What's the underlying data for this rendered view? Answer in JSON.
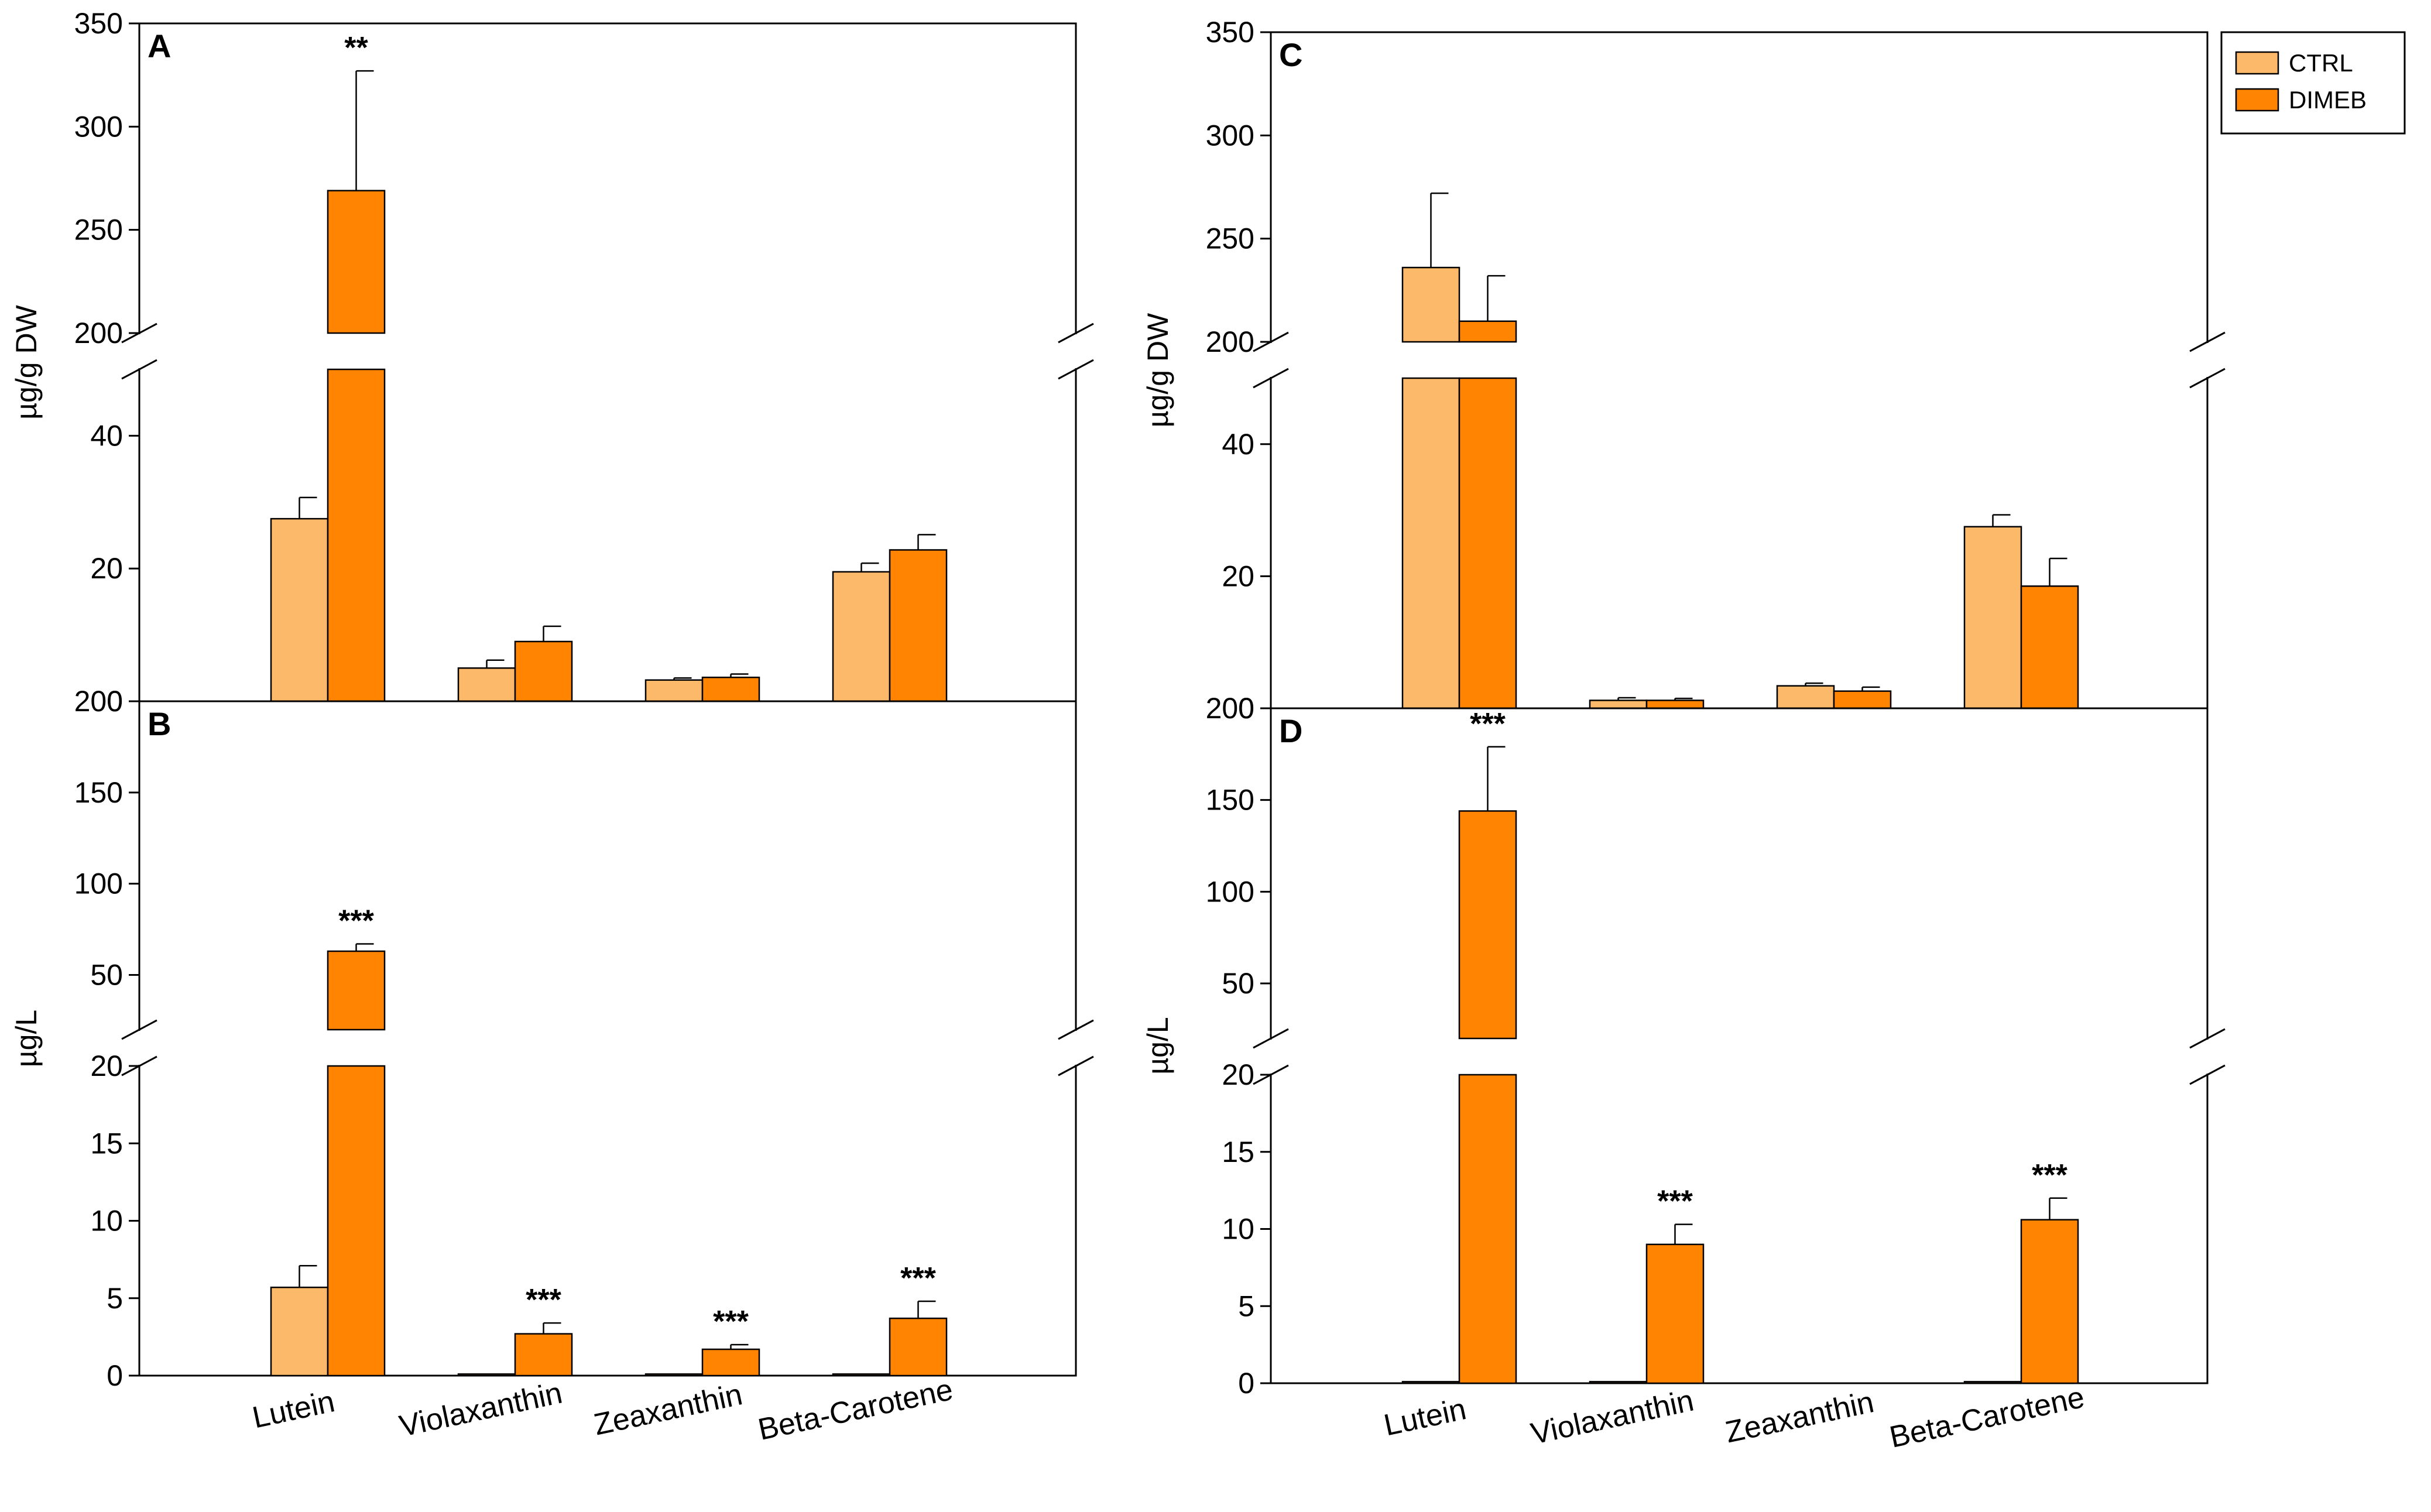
{
  "colors": {
    "ctrl": "#FDB96A",
    "dimeb": "#FF8401",
    "outline": "#000000"
  },
  "legend": [
    {
      "name": "CTRL",
      "color": "#FDB96A"
    },
    {
      "name": "DIMEB",
      "color": "#FF8401"
    }
  ],
  "chart_data": [
    {
      "panel": "A",
      "type": "bar",
      "ylabel": "µg/g DW",
      "y_axis_break": {
        "lower_range": [
          0,
          50
        ],
        "upper_range": [
          200,
          350
        ]
      },
      "lower_ticks": [
        0,
        20,
        40
      ],
      "upper_ticks": [
        200,
        250,
        300,
        350
      ],
      "categories": [
        "Lutein",
        "Violaxanthin",
        "Zeaxanthin",
        "Beta-Carotene"
      ],
      "series": [
        {
          "name": "CTRL",
          "values": [
            27.5,
            5.0,
            3.2,
            19.5
          ],
          "errors": [
            3.2,
            1.2,
            0.3,
            1.3
          ]
        },
        {
          "name": "DIMEB",
          "values": [
            269,
            9.0,
            3.6,
            22.8
          ],
          "errors": [
            58,
            2.3,
            0.5,
            2.3
          ]
        }
      ],
      "significance": [
        "**",
        "",
        "",
        ""
      ]
    },
    {
      "panel": "B",
      "type": "bar",
      "ylabel": "µg/L",
      "y_axis_break": {
        "lower_range": [
          0,
          20
        ],
        "upper_range": [
          20,
          200
        ]
      },
      "lower_ticks": [
        0,
        5,
        10,
        15,
        20
      ],
      "upper_ticks": [
        50,
        100,
        150,
        200
      ],
      "categories": [
        "Lutein",
        "Violaxanthin",
        "Zeaxanthin",
        "Beta-Carotene"
      ],
      "series": [
        {
          "name": "CTRL",
          "values": [
            5.7,
            0.1,
            0.1,
            0.1
          ],
          "errors": [
            1.4,
            0,
            0,
            0
          ]
        },
        {
          "name": "DIMEB",
          "values": [
            63,
            2.7,
            1.7,
            3.7
          ],
          "errors": [
            4,
            0.7,
            0.3,
            1.1
          ]
        }
      ],
      "significance": [
        "***",
        "***",
        "***",
        "***"
      ]
    },
    {
      "panel": "C",
      "type": "bar",
      "ylabel": "µg/g DW",
      "y_axis_break": {
        "lower_range": [
          0,
          50
        ],
        "upper_range": [
          200,
          350
        ]
      },
      "lower_ticks": [
        0,
        20,
        40
      ],
      "upper_ticks": [
        200,
        250,
        300,
        350
      ],
      "categories": [
        "Lutein",
        "Violaxanthin",
        "Zeaxanthin",
        "Beta-Carotene"
      ],
      "series": [
        {
          "name": "CTRL",
          "values": [
            236,
            1.2,
            3.4,
            27.5
          ],
          "errors": [
            36,
            0.4,
            0.4,
            1.8
          ]
        },
        {
          "name": "DIMEB",
          "values": [
            210,
            1.2,
            2.6,
            18.5
          ],
          "errors": [
            22,
            0.3,
            0.6,
            4.2
          ]
        }
      ],
      "significance": [
        "",
        "",
        "",
        ""
      ]
    },
    {
      "panel": "D",
      "type": "bar",
      "ylabel": "µg/L",
      "y_axis_break": {
        "lower_range": [
          0,
          20
        ],
        "upper_range": [
          20,
          200
        ]
      },
      "lower_ticks": [
        0,
        5,
        10,
        15,
        20
      ],
      "upper_ticks": [
        50,
        100,
        150,
        200
      ],
      "categories": [
        "Lutein",
        "Violaxanthin",
        "Zeaxanthin",
        "Beta-Carotene"
      ],
      "series": [
        {
          "name": "CTRL",
          "values": [
            0.1,
            0.1,
            0,
            0.1
          ],
          "errors": [
            0,
            0,
            0,
            0
          ]
        },
        {
          "name": "DIMEB",
          "values": [
            144,
            9.0,
            0,
            10.6
          ],
          "errors": [
            35,
            1.3,
            0,
            1.4
          ]
        }
      ],
      "significance": [
        "***",
        "***",
        "",
        "***"
      ]
    }
  ]
}
